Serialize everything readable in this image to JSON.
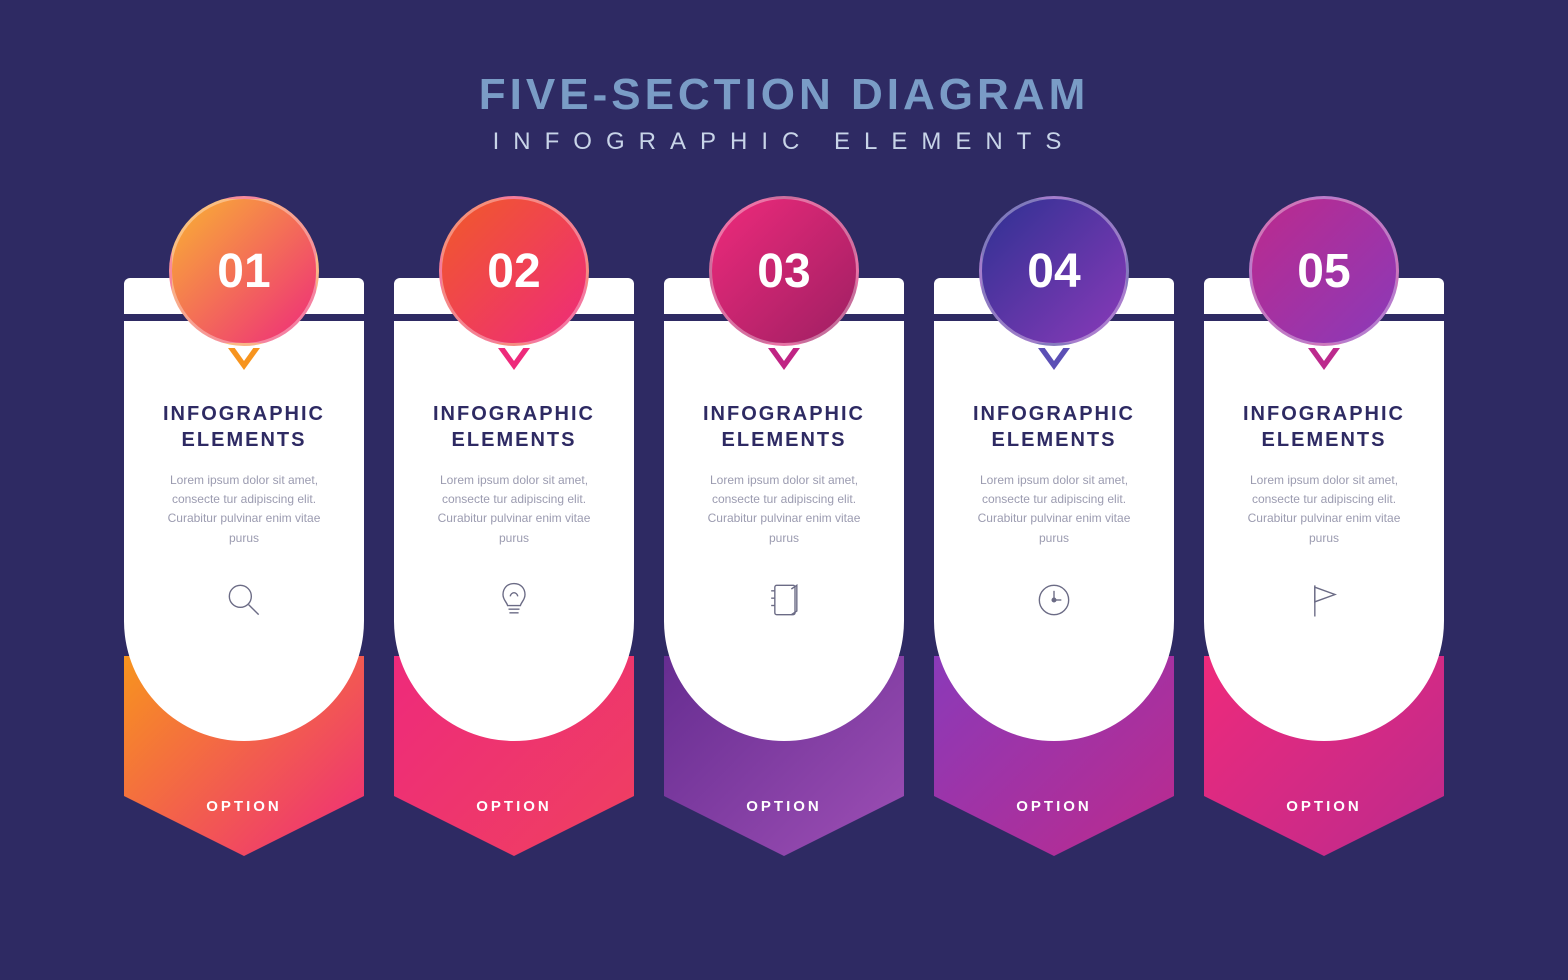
{
  "header": {
    "title": "FIVE-SECTION DIAGRAM",
    "subtitle": "INFOGRAPHIC ELEMENTS",
    "title_color": "#7a9cc6",
    "subtitle_color": "#c8d4e8",
    "title_fontsize": 44,
    "subtitle_fontsize": 24
  },
  "background_color": "#2e2a63",
  "card_template": {
    "title_line1": "INFOGRAPHIC",
    "title_line2": "ELEMENTS",
    "description": "Lorem ipsum dolor sit amet, consecte tur adipiscing elit. Curabitur pulvinar enim vitae purus",
    "footer_label": "OPTION",
    "body_bg": "#ffffff",
    "title_color": "#2e2a63",
    "desc_color": "#9b9bb0",
    "icon_color": "#6b6b85"
  },
  "cards": [
    {
      "number": "01",
      "icon": "magnifier",
      "gradient_from": "#f9b233",
      "gradient_to": "#ee2a7b",
      "footer_gradient_from": "#f7941e",
      "footer_gradient_to": "#ee2a7b",
      "pointer_color": "#f7941e"
    },
    {
      "number": "02",
      "icon": "lightbulb",
      "gradient_from": "#f15a29",
      "gradient_to": "#ee2a7b",
      "footer_gradient_from": "#ee2a7b",
      "footer_gradient_to": "#ef4060",
      "pointer_color": "#ee2a7b"
    },
    {
      "number": "03",
      "icon": "notebook",
      "gradient_from": "#ee2a7b",
      "gradient_to": "#9e1f63",
      "footer_gradient_from": "#662d91",
      "footer_gradient_to": "#9e4fb5",
      "pointer_color": "#c02484"
    },
    {
      "number": "04",
      "icon": "clock",
      "gradient_from": "#2e3192",
      "gradient_to": "#8a3ab9",
      "footer_gradient_from": "#8a3ab9",
      "footer_gradient_to": "#bc2a8d",
      "pointer_color": "#5b4fb5"
    },
    {
      "number": "05",
      "icon": "flag",
      "gradient_from": "#bc2a8d",
      "gradient_to": "#8a3ab9",
      "footer_gradient_from": "#ee2a7b",
      "footer_gradient_to": "#bc2a8d",
      "pointer_color": "#bc2a8d"
    }
  ]
}
